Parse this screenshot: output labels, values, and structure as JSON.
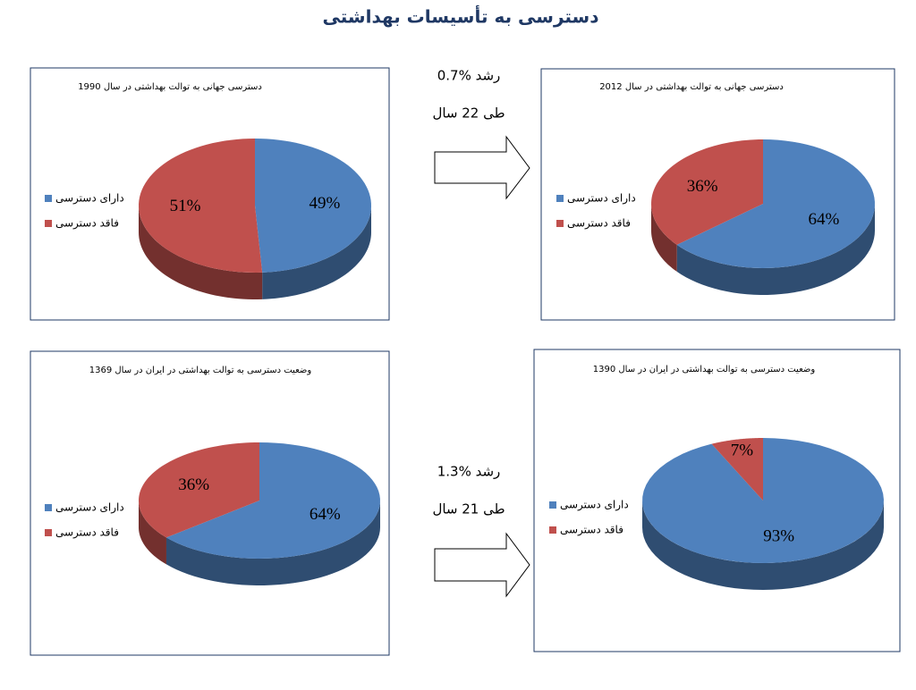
{
  "title": "دسترسی به تأسیسات بهداشتی",
  "annotations": [
    {
      "rate": "رشد %0.7",
      "period": "طی 22 سال"
    },
    {
      "rate": "رشد %1.3",
      "period": "طی 21 سال"
    }
  ],
  "chart_data": [
    {
      "type": "pie",
      "title": "دسترسی جهانی به توالت بهداشتی در سال 1990",
      "categories": [
        "دارای دسترسی",
        "فاقد دسترسی"
      ],
      "values": [
        49,
        51
      ],
      "value_labels": [
        "49%",
        "51%"
      ],
      "colors": [
        "#4f81bd",
        "#c0504d"
      ]
    },
    {
      "type": "pie",
      "title": "دسترسی جهانی به توالت بهداشتی در سال 2012",
      "categories": [
        "دارای دسترسی",
        "فاقد دسترسی"
      ],
      "values": [
        64,
        36
      ],
      "value_labels": [
        "64%",
        "36%"
      ],
      "colors": [
        "#4f81bd",
        "#c0504d"
      ]
    },
    {
      "type": "pie",
      "title": "وضعیت دسترسی به توالت بهداشتی در ایران در سال 1369",
      "categories": [
        "دارای دسترسی",
        "فاقد دسترسی"
      ],
      "values": [
        64,
        36
      ],
      "value_labels": [
        "64%",
        "36%"
      ],
      "colors": [
        "#4f81bd",
        "#c0504d"
      ]
    },
    {
      "type": "pie",
      "title": "وضعیت دسترسی به توالت بهداشتی در ایران در سال 1390",
      "categories": [
        "دارای دسترسی",
        "فاقد دسترسی"
      ],
      "values": [
        93,
        7
      ],
      "value_labels": [
        "93%",
        "7%"
      ],
      "colors": [
        "#4f81bd",
        "#c0504d"
      ]
    }
  ]
}
